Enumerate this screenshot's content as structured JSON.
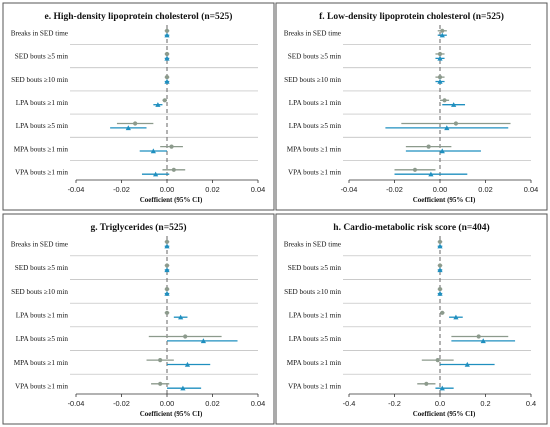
{
  "colors": {
    "grey": "#8c9a8c",
    "blue": "#1f8fbf",
    "frame": "#555555",
    "sep": "#b8b8b8"
  },
  "row_labels": [
    "Breaks in SED time",
    "SED bouts ≥5 min",
    "SED bouts ≥10 min",
    "LPA bouts ≥1 min",
    "LPA bouts ≥5 min",
    "MPA bouts ≥1 min",
    "VPA bouts ≥1 min"
  ],
  "chart_data": [
    {
      "type": "forest",
      "title": "e. High-density lipoprotein cholesterol (n=525)",
      "xlabel": "Coefficient (95% CI)",
      "xlim": [
        -0.04,
        0.04
      ],
      "ticks": [
        -0.04,
        -0.02,
        0,
        0.02,
        0.04
      ],
      "tick_labels": [
        "-0.04",
        "-0.02",
        "0.00",
        "0.02",
        "0.04"
      ],
      "series": [
        {
          "marker": "circle",
          "estimate": [
            0.0,
            0.0,
            0.0,
            -0.001,
            -0.014,
            0.002,
            0.003
          ],
          "lower": [
            -0.001,
            -0.001,
            -0.001,
            -0.002,
            -0.022,
            -0.003,
            -0.002
          ],
          "upper": [
            0.001,
            0.001,
            0.001,
            0.0,
            -0.006,
            0.007,
            0.008
          ]
        },
        {
          "marker": "triangle",
          "estimate": [
            0.0,
            0.0,
            0.0,
            -0.004,
            -0.017,
            -0.006,
            -0.005
          ],
          "lower": [
            -0.001,
            -0.001,
            -0.001,
            -0.006,
            -0.025,
            -0.012,
            -0.011
          ],
          "upper": [
            0.001,
            0.001,
            0.001,
            -0.002,
            -0.009,
            0.0,
            0.001
          ]
        }
      ]
    },
    {
      "type": "forest",
      "title": "f. Low-density lipoprotein cholesterol (n=525)",
      "xlabel": "Coefficient (95% CI)",
      "xlim": [
        -0.04,
        0.04
      ],
      "ticks": [
        -0.04,
        -0.02,
        0,
        0.02,
        0.04
      ],
      "tick_labels": [
        "-0.04",
        "-0.02",
        "0.00",
        "0.02",
        "0.04"
      ],
      "series": [
        {
          "marker": "circle",
          "estimate": [
            0.001,
            0.0,
            0.0,
            0.002,
            0.007,
            -0.005,
            -0.011
          ],
          "lower": [
            -0.001,
            -0.002,
            -0.002,
            0.0,
            -0.017,
            -0.015,
            -0.02
          ],
          "upper": [
            0.003,
            0.002,
            0.002,
            0.004,
            0.031,
            0.005,
            -0.002
          ]
        },
        {
          "marker": "triangle",
          "estimate": [
            0.001,
            0.0,
            0.0,
            0.006,
            0.003,
            0.001,
            -0.004
          ],
          "lower": [
            -0.001,
            -0.002,
            -0.002,
            0.001,
            -0.024,
            -0.015,
            -0.02
          ],
          "upper": [
            0.003,
            0.002,
            0.002,
            0.011,
            0.03,
            0.018,
            0.012
          ]
        }
      ]
    },
    {
      "type": "forest",
      "title": "g. Triglycerides (n=525)",
      "xlabel": "Coefficient (95% CI)",
      "xlim": [
        -0.04,
        0.04
      ],
      "ticks": [
        -0.04,
        -0.02,
        0,
        0.02,
        0.04
      ],
      "tick_labels": [
        "-0.04",
        "-0.02",
        "0.00",
        "0.02",
        "0.04"
      ],
      "series": [
        {
          "marker": "circle",
          "estimate": [
            0.0,
            0.0,
            0.0,
            0.0,
            0.008,
            -0.003,
            -0.003
          ],
          "lower": [
            -0.001,
            -0.001,
            -0.001,
            -0.001,
            -0.008,
            -0.009,
            -0.007
          ],
          "upper": [
            0.001,
            0.001,
            0.001,
            0.001,
            0.024,
            0.003,
            0.001
          ]
        },
        {
          "marker": "triangle",
          "estimate": [
            0.0,
            0.0,
            0.0,
            0.006,
            0.016,
            0.009,
            0.007
          ],
          "lower": [
            -0.001,
            -0.001,
            -0.001,
            0.003,
            0.0,
            0.0,
            0.0
          ],
          "upper": [
            0.001,
            0.001,
            0.001,
            0.009,
            0.031,
            0.019,
            0.015
          ]
        }
      ]
    },
    {
      "type": "forest",
      "title": "h. Cardio-metabolic risk score (n=404)",
      "xlabel": "Coefficient (95% CI)",
      "xlim": [
        -0.4,
        0.4
      ],
      "ticks": [
        -0.4,
        -0.2,
        0,
        0.2,
        0.4
      ],
      "tick_labels": [
        "-0.4",
        "-0.2",
        "0.0",
        "0.2",
        "0.4"
      ],
      "series": [
        {
          "marker": "circle",
          "estimate": [
            0.0,
            0.0,
            0.0,
            0.01,
            0.17,
            -0.01,
            -0.06
          ],
          "lower": [
            -0.01,
            -0.01,
            -0.01,
            0.0,
            0.05,
            -0.08,
            -0.1
          ],
          "upper": [
            0.01,
            0.01,
            0.01,
            0.02,
            0.3,
            0.06,
            -0.02
          ]
        },
        {
          "marker": "triangle",
          "estimate": [
            0.0,
            0.0,
            0.0,
            0.07,
            0.19,
            0.12,
            0.01
          ],
          "lower": [
            -0.01,
            -0.01,
            -0.01,
            0.04,
            0.05,
            0.0,
            -0.02
          ],
          "upper": [
            0.01,
            0.01,
            0.01,
            0.1,
            0.33,
            0.24,
            0.06
          ]
        }
      ]
    }
  ]
}
